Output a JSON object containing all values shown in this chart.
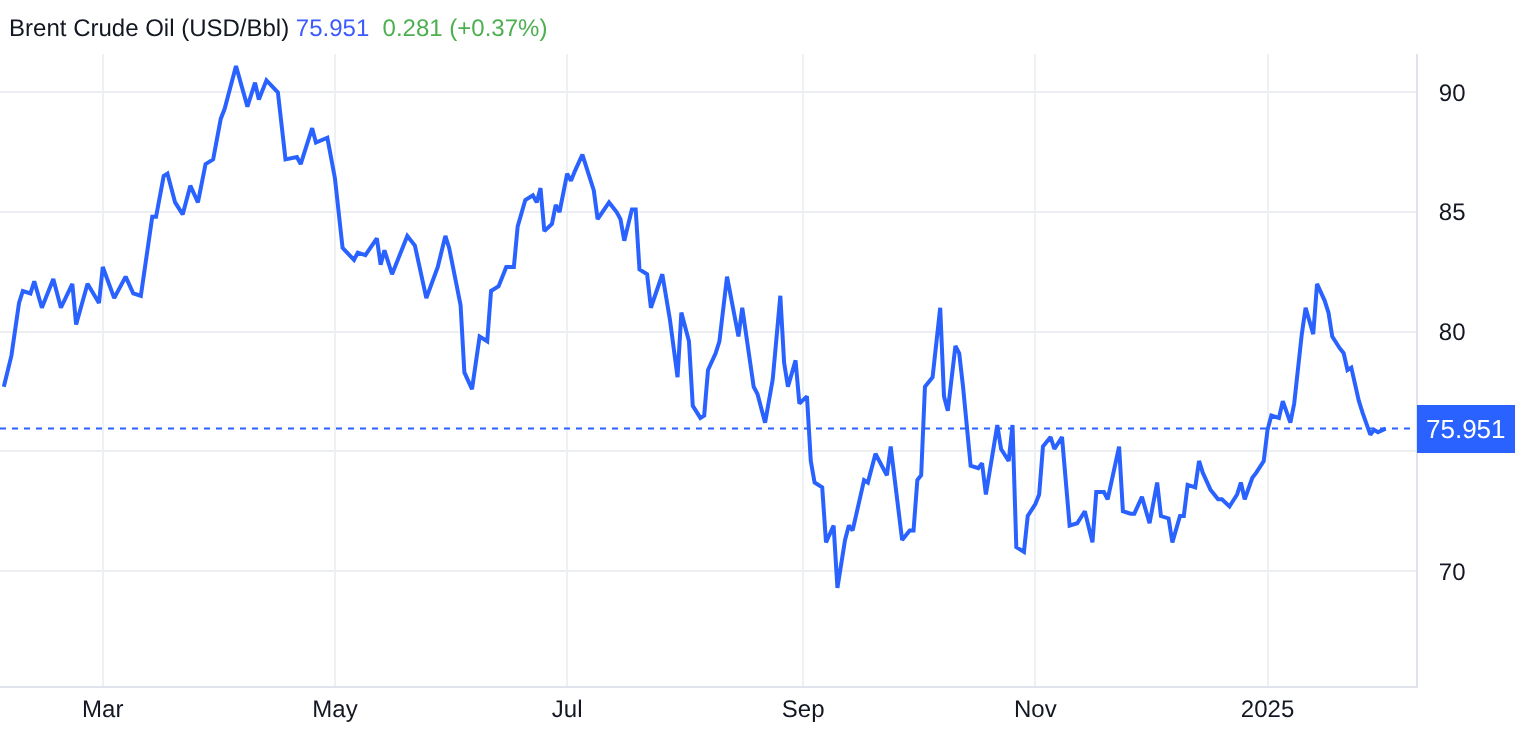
{
  "chart_data": {
    "type": "line",
    "title": "Brent Crude Oil (USD/Bbl) 75.951 0.281 (+0.37%)",
    "x": [
      "2024-02-04",
      "2024-02-06",
      "2024-02-08",
      "2024-02-09",
      "2024-02-11",
      "2024-02-12",
      "2024-02-14",
      "2024-02-17",
      "2024-02-19",
      "2024-02-22",
      "2024-02-23",
      "2024-02-26",
      "2024-02-29",
      "2024-03-01",
      "2024-03-04",
      "2024-03-07",
      "2024-03-09",
      "2024-03-11",
      "2024-03-13",
      "2024-03-14",
      "2024-03-15",
      "2024-03-17",
      "2024-03-18",
      "2024-03-20",
      "2024-03-22",
      "2024-03-24",
      "2024-03-26",
      "2024-03-28",
      "2024-03-30",
      "2024-04-01",
      "2024-04-02",
      "2024-04-05",
      "2024-04-08",
      "2024-04-10",
      "2024-04-11",
      "2024-04-13",
      "2024-04-16",
      "2024-04-18",
      "2024-04-21",
      "2024-04-22",
      "2024-04-25",
      "2024-04-26",
      "2024-04-29",
      "2024-05-01",
      "2024-05-03",
      "2024-05-06",
      "2024-05-07",
      "2024-05-09",
      "2024-05-12",
      "2024-05-13",
      "2024-05-14",
      "2024-05-16",
      "2024-05-20",
      "2024-05-22",
      "2024-05-25",
      "2024-05-28",
      "2024-05-30",
      "2024-05-31",
      "2024-06-02",
      "2024-06-03",
      "2024-06-04",
      "2024-06-06",
      "2024-06-08",
      "2024-06-10",
      "2024-06-11",
      "2024-06-13",
      "2024-06-15",
      "2024-06-17",
      "2024-06-18",
      "2024-06-20",
      "2024-06-22",
      "2024-06-23",
      "2024-06-24",
      "2024-06-25",
      "2024-06-27",
      "2024-06-28",
      "2024-06-29",
      "2024-07-01",
      "2024-07-02",
      "2024-07-03",
      "2024-07-05",
      "2024-07-08",
      "2024-07-09",
      "2024-07-12",
      "2024-07-14",
      "2024-07-15",
      "2024-07-16",
      "2024-07-18",
      "2024-07-19",
      "2024-07-20",
      "2024-07-22",
      "2024-07-23",
      "2024-07-26",
      "2024-07-28",
      "2024-07-30",
      "2024-07-31",
      "2024-08-02",
      "2024-08-03",
      "2024-08-05",
      "2024-08-06",
      "2024-08-07",
      "2024-08-09",
      "2024-08-10",
      "2024-08-12",
      "2024-08-15",
      "2024-08-16",
      "2024-08-19",
      "2024-08-20",
      "2024-08-22",
      "2024-08-24",
      "2024-08-26",
      "2024-08-27",
      "2024-08-28",
      "2024-08-30",
      "2024-08-31",
      "2024-09-02",
      "2024-09-03",
      "2024-09-04",
      "2024-09-06",
      "2024-09-07",
      "2024-09-09",
      "2024-09-10",
      "2024-09-12",
      "2024-09-13",
      "2024-09-14",
      "2024-09-17",
      "2024-09-18",
      "2024-09-20",
      "2024-09-23",
      "2024-09-24",
      "2024-09-27",
      "2024-09-29",
      "2024-09-30",
      "2024-10-01",
      "2024-10-02",
      "2024-10-03",
      "2024-10-05",
      "2024-10-07",
      "2024-10-08",
      "2024-10-09",
      "2024-10-11",
      "2024-10-12",
      "2024-10-13",
      "2024-10-15",
      "2024-10-17",
      "2024-10-18",
      "2024-10-19",
      "2024-10-22",
      "2024-10-23",
      "2024-10-25",
      "2024-10-26",
      "2024-10-27",
      "2024-10-29",
      "2024-10-30",
      "2024-11-01",
      "2024-11-02",
      "2024-11-03",
      "2024-11-05",
      "2024-11-06",
      "2024-11-08",
      "2024-11-10",
      "2024-11-12",
      "2024-11-14",
      "2024-11-16",
      "2024-11-17",
      "2024-11-19",
      "2024-11-20",
      "2024-11-23",
      "2024-11-24",
      "2024-11-26",
      "2024-11-27",
      "2024-11-29",
      "2024-12-01",
      "2024-12-03",
      "2024-12-04",
      "2024-12-06",
      "2024-12-07",
      "2024-12-09",
      "2024-12-10",
      "2024-12-11",
      "2024-12-13",
      "2024-12-14",
      "2024-12-15",
      "2024-12-17",
      "2024-12-19",
      "2024-12-20",
      "2024-12-22",
      "2024-12-24",
      "2024-12-25",
      "2024-12-26",
      "2024-12-28",
      "2024-12-29",
      "2024-12-31",
      "2025-01-01",
      "2025-01-02",
      "2025-01-04",
      "2025-01-05",
      "2025-01-07",
      "2025-01-08",
      "2025-01-10",
      "2025-01-11",
      "2025-01-13",
      "2025-01-14",
      "2025-01-16",
      "2025-01-17",
      "2025-01-18",
      "2025-01-20",
      "2025-01-21",
      "2025-01-22",
      "2025-01-23",
      "2025-01-25",
      "2025-01-26",
      "2025-01-28",
      "2025-01-29",
      "2025-01-30",
      "2025-02-01"
    ],
    "series": [
      {
        "color": "#2962ff",
        "values": [
          77.7,
          79.0,
          81.2,
          81.7,
          81.6,
          82.1,
          81.0,
          82.2,
          81.0,
          82.0,
          80.3,
          82.0,
          81.2,
          82.7,
          81.4,
          82.3,
          81.6,
          81.5,
          83.7,
          84.8,
          84.8,
          86.5,
          86.6,
          85.4,
          84.9,
          86.1,
          85.4,
          87.0,
          87.2,
          88.9,
          89.3,
          91.1,
          89.4,
          90.4,
          89.7,
          90.5,
          90.0,
          87.2,
          87.3,
          87.0,
          88.5,
          87.9,
          88.1,
          86.4,
          83.5,
          83.0,
          83.3,
          83.2,
          83.9,
          82.8,
          83.4,
          82.4,
          84.0,
          83.6,
          81.4,
          82.7,
          84.0,
          83.5,
          81.9,
          81.1,
          78.3,
          77.6,
          79.8,
          79.6,
          81.7,
          81.9,
          82.7,
          82.7,
          84.4,
          85.5,
          85.7,
          85.4,
          86.0,
          84.2,
          84.5,
          85.3,
          85.0,
          86.6,
          86.3,
          86.7,
          87.4,
          85.9,
          84.7,
          85.4,
          85.0,
          84.7,
          83.8,
          85.1,
          85.1,
          82.6,
          82.4,
          81.0,
          82.4,
          80.5,
          78.1,
          80.8,
          79.6,
          76.9,
          76.4,
          76.5,
          78.4,
          79.1,
          79.6,
          82.3,
          79.8,
          81.0,
          77.7,
          77.4,
          76.2,
          78.0,
          81.5,
          78.7,
          77.7,
          78.8,
          77.0,
          77.3,
          74.6,
          73.7,
          73.5,
          71.2,
          71.9,
          69.3,
          71.3,
          71.9,
          71.7,
          73.8,
          73.7,
          74.9,
          74.0,
          75.2,
          71.3,
          71.7,
          71.7,
          73.8,
          74.0,
          77.7,
          78.1,
          81.0,
          77.3,
          76.7,
          79.4,
          79.1,
          77.7,
          74.4,
          74.3,
          74.5,
          73.2,
          76.1,
          75.1,
          74.6,
          76.1,
          71.0,
          70.8,
          72.3,
          72.8,
          73.2,
          75.2,
          75.6,
          75.1,
          75.6,
          71.9,
          72.0,
          72.5,
          71.2,
          73.3,
          73.3,
          73.0,
          75.2,
          72.5,
          72.4,
          72.4,
          73.1,
          72.0,
          73.7,
          72.3,
          72.2,
          71.2,
          72.3,
          72.3,
          73.6,
          73.5,
          74.6,
          74.1,
          73.4,
          73.0,
          73.0,
          72.7,
          73.2,
          73.7,
          73.0,
          73.9,
          74.1,
          74.6,
          75.9,
          76.5,
          76.4,
          77.1,
          76.2,
          77.0,
          79.9,
          81.0,
          79.9,
          82.0,
          81.3,
          80.8,
          79.8,
          79.3,
          79.1,
          78.4,
          78.5,
          77.1,
          76.6,
          75.7,
          75.9,
          75.8,
          75.951
        ]
      }
    ],
    "xlim": [
      "2024-02-03",
      "2025-02-09"
    ],
    "xticks": [
      {
        "value": "2024-03-01",
        "label": "Mar"
      },
      {
        "value": "2024-05-01",
        "label": "May"
      },
      {
        "value": "2024-07-01",
        "label": "Jul"
      },
      {
        "value": "2024-09-01",
        "label": "Sep"
      },
      {
        "value": "2024-11-01",
        "label": "Nov"
      },
      {
        "value": "2025-01-01",
        "label": "2025"
      }
    ],
    "ylim": [
      65.2,
      91.6
    ],
    "yticks": [
      70,
      {
        "value": 75,
        "label": null
      },
      80,
      85,
      90
    ],
    "ref_lines": [
      {
        "axis": "y",
        "value": 75.951,
        "label": "75.951",
        "color": "#2962ff",
        "line_style": "dotted"
      }
    ],
    "grid": true,
    "marker": "none",
    "line_style": "solid"
  }
}
